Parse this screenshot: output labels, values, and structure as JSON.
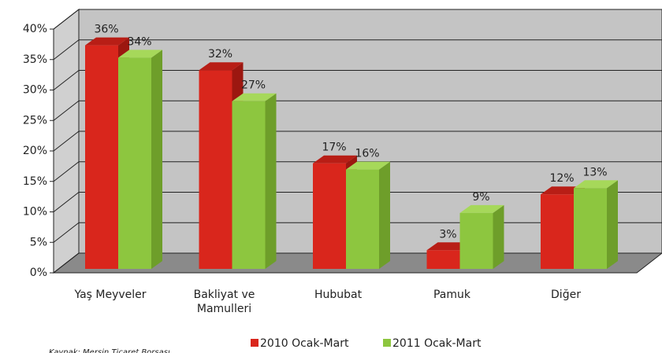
{
  "chart_data": {
    "type": "bar3d",
    "categories": [
      "Yaş Meyveler",
      "Bakliyat ve Mamulleri",
      "Hububat",
      "Pamuk",
      "Diğer"
    ],
    "series": [
      {
        "name": "2010 Ocak-Mart",
        "color": "#d9261c",
        "values": [
          36,
          32,
          17,
          3,
          12
        ],
        "value_labels": [
          "36%",
          "32%",
          "17%",
          "3%",
          "12%"
        ]
      },
      {
        "name": "2011 Ocak-Mart",
        "color": "#8dc63f",
        "values": [
          34,
          27,
          16,
          9,
          13
        ],
        "value_labels": [
          "34%",
          "27%",
          "16%",
          "9%",
          "13%"
        ]
      }
    ],
    "ylim": [
      0,
      40
    ],
    "yticks": [
      {
        "value": 0,
        "label": "0%"
      },
      {
        "value": 5,
        "label": "5%"
      },
      {
        "value": 10,
        "label": "10%"
      },
      {
        "value": 15,
        "label": "15%"
      },
      {
        "value": 20,
        "label": "20%"
      },
      {
        "value": 25,
        "label": "25%"
      },
      {
        "value": 30,
        "label": "30%"
      },
      {
        "value": 35,
        "label": "35%"
      },
      {
        "value": 40,
        "label": "40%"
      }
    ],
    "grid": true,
    "legend": "bottom",
    "source": "Kaynak: Mersin Ticaret Borsası"
  }
}
